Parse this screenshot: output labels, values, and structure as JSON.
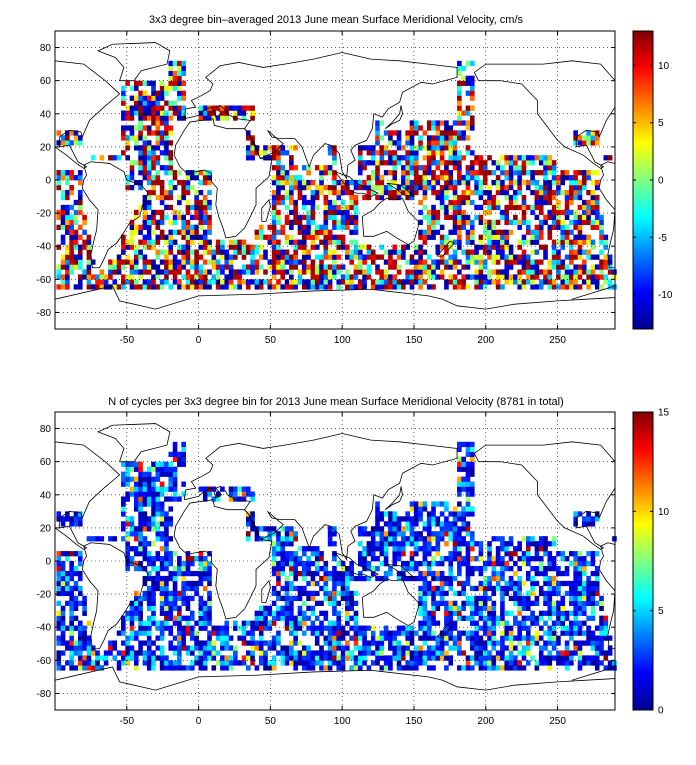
{
  "figure": {
    "panels": [
      {
        "title": "3x3 degree bin–averaged 2013 June mean Surface Meridional Velocity, cm/s"
      },
      {
        "title": "N of cycles per 3x3 degree bin for 2013 June mean Surface Meridional Velocity (8781 in total)"
      }
    ]
  },
  "chart_data": [
    {
      "type": "heatmap",
      "title": "3x3 degree bin–averaged 2013 June mean Surface Meridional Velocity, cm/s",
      "xlabel": "",
      "ylabel": "",
      "xlim": [
        -100,
        290
      ],
      "ylim": [
        -90,
        90
      ],
      "xticks": [
        -50,
        0,
        50,
        100,
        150,
        200,
        250
      ],
      "yticks": [
        -80,
        -60,
        -40,
        -20,
        0,
        20,
        40,
        60,
        80
      ],
      "grid": "dotted",
      "bin_size_deg": 3,
      "colorbar": {
        "range": [
          -13,
          13
        ],
        "ticks": [
          -10,
          -5,
          0,
          5,
          10
        ],
        "colormap": "jet",
        "placement": "right"
      },
      "colormap_colors": [
        "#00008f",
        "#0000ff",
        "#0080ff",
        "#00ffff",
        "#80ff80",
        "#ffff00",
        "#ff8000",
        "#ff0000",
        "#800000"
      ]
    },
    {
      "type": "heatmap",
      "title": "N of cycles per 3x3 degree bin for 2013 June mean Surface Meridional Velocity (8781 in total)",
      "xlabel": "",
      "ylabel": "",
      "xlim": [
        -100,
        290
      ],
      "ylim": [
        -90,
        90
      ],
      "xticks": [
        -50,
        0,
        50,
        100,
        150,
        200,
        250
      ],
      "yticks": [
        -80,
        -60,
        -40,
        -20,
        0,
        20,
        40,
        60,
        80
      ],
      "grid": "dotted",
      "bin_size_deg": 3,
      "total_cycles": 8781,
      "colorbar": {
        "range": [
          0,
          15
        ],
        "ticks": [
          0,
          5,
          10,
          15
        ],
        "colormap": "jet",
        "placement": "right"
      },
      "colormap_colors": [
        "#00008f",
        "#0000ff",
        "#0080ff",
        "#00ffff",
        "#80ff80",
        "#ffff00",
        "#ff8000",
        "#ff0000",
        "#800000"
      ]
    }
  ]
}
